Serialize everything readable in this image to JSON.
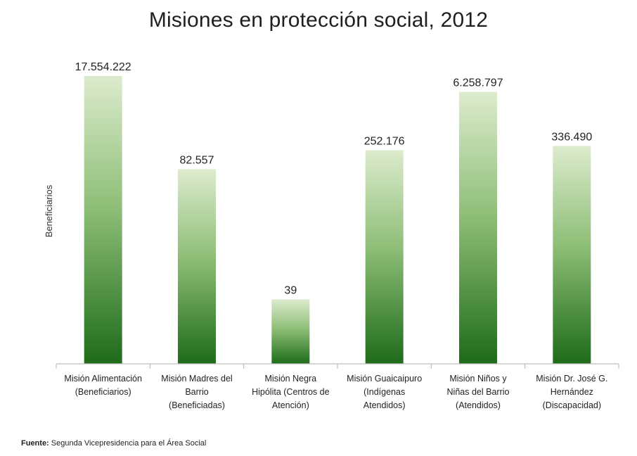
{
  "chart_data": {
    "type": "bar",
    "title": "Misiones en protección social, 2012",
    "ylabel": "Beneficiarios",
    "xlabel": "",
    "scale_note": "bar heights are not proportional to values in the original",
    "categories": [
      [
        "Misión Alimentación",
        "(Beneficiarios)"
      ],
      [
        "Misión Madres del",
        "Barrio",
        "(Beneficiadas)"
      ],
      [
        "Misión Negra",
        "Hipólita (Centros de",
        "Atención)"
      ],
      [
        "Misión Guaicaipuro",
        "(Indígenas",
        "Atendidos)"
      ],
      [
        "Misión Niños y",
        "Niñas del Barrio",
        "(Atendidos)"
      ],
      [
        "Misión Dr. José G.",
        "Hernández",
        "(Discapacidad)"
      ]
    ],
    "values": [
      17554222,
      82557,
      39,
      252176,
      6258797,
      336490
    ],
    "value_labels": [
      "17.554.222",
      "82.557",
      "39",
      "252.176",
      "6.258.797",
      "336.490"
    ],
    "visual_heights": [
      1.0,
      0.676,
      0.224,
      0.742,
      0.945,
      0.757
    ],
    "colors": {
      "bar_top": "#dcebcd",
      "bar_bottom": "#1e6b1a",
      "axis": "#bfbfbf"
    }
  },
  "source": {
    "label": "Fuente:",
    "text": " Segunda Vicepresidencia para el Área Social"
  }
}
